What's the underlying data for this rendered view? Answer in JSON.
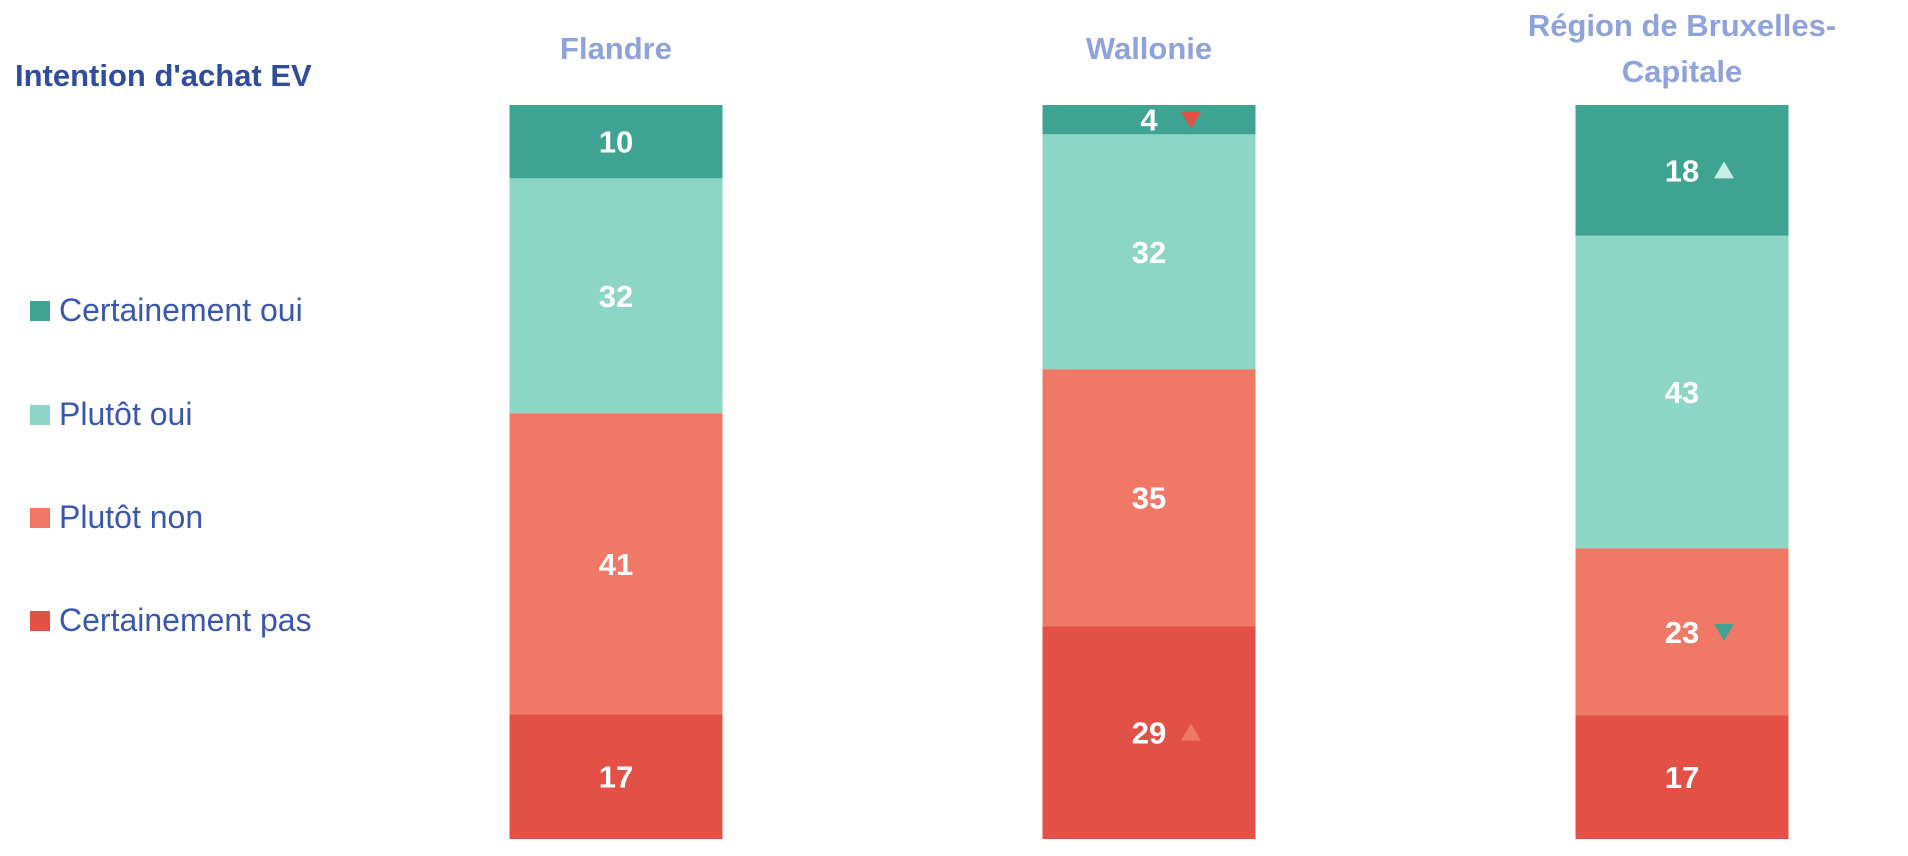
{
  "chart_data": {
    "type": "stacked_bar_100",
    "title": "Intention d'achat EV",
    "categories": [
      "Flandre",
      "Wallonie",
      "Région de Bruxelles-Capitale"
    ],
    "series": [
      {
        "name": "Certainement oui",
        "color": "#3fa391",
        "values": [
          10,
          4,
          18
        ]
      },
      {
        "name": "Plutôt oui",
        "color": "#8dd6c6",
        "values": [
          32,
          32,
          43
        ]
      },
      {
        "name": "Plutôt non",
        "color": "#ef7867",
        "values": [
          41,
          35,
          23
        ]
      },
      {
        "name": "Certainement pas",
        "color": "#e35046",
        "values": [
          17,
          29,
          17
        ]
      }
    ],
    "arrows": [
      {
        "series": 0,
        "category": 1,
        "direction": "down",
        "color": "#e35046"
      },
      {
        "series": 3,
        "category": 1,
        "direction": "up",
        "color": "#ef7867"
      },
      {
        "series": 0,
        "category": 2,
        "direction": "up",
        "color": "#c8eee5"
      },
      {
        "series": 2,
        "category": 2,
        "direction": "down",
        "color": "#3fa391"
      }
    ],
    "legend": "left"
  }
}
